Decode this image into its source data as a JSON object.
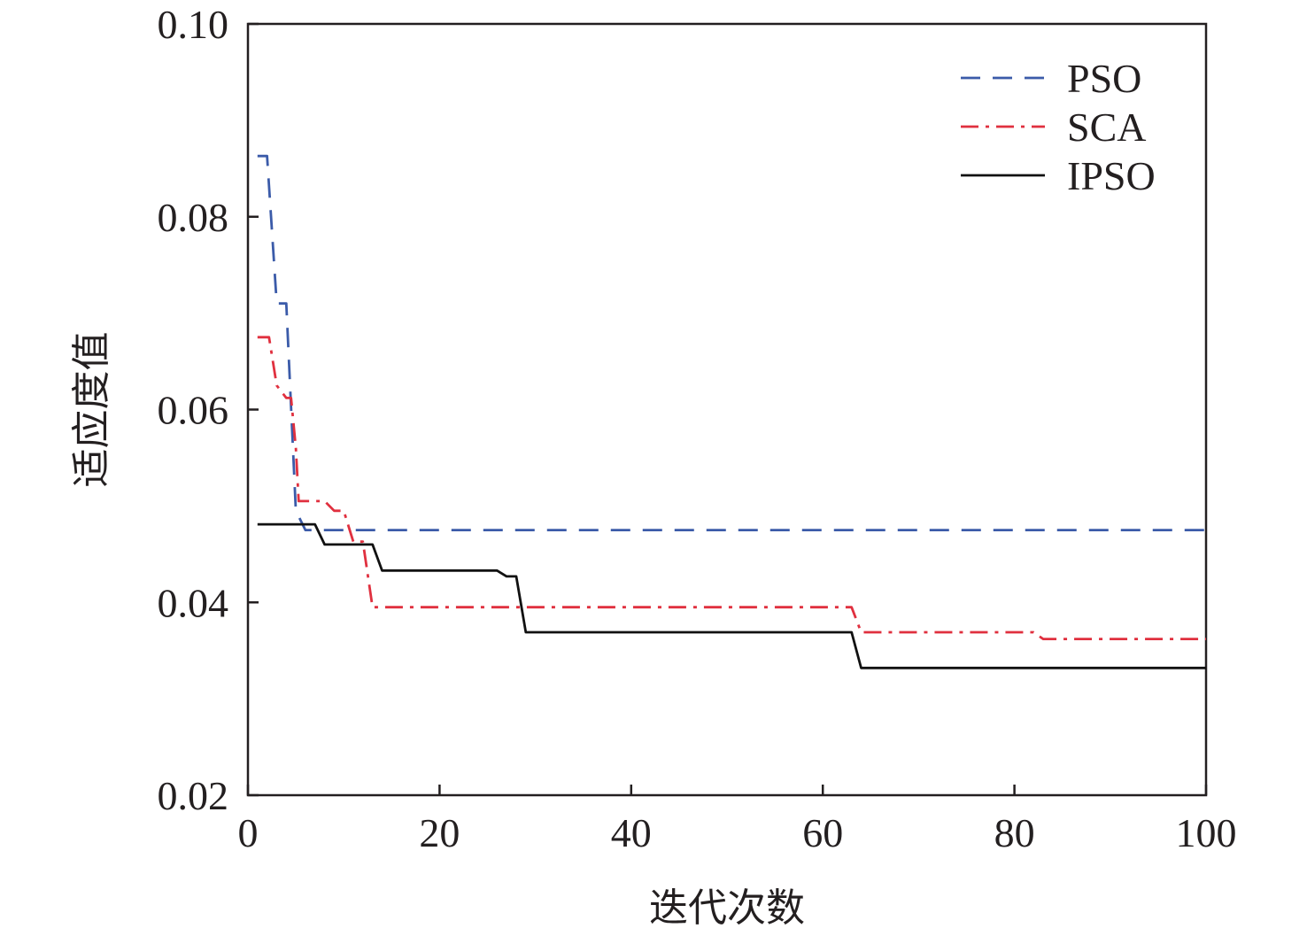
{
  "chart_data": {
    "type": "line",
    "title": "",
    "xlabel": "迭代次数",
    "ylabel": "适应度值",
    "xlim": [
      0,
      100
    ],
    "ylim": [
      0.02,
      0.1
    ],
    "x_ticks": [
      0,
      20,
      40,
      60,
      80,
      100
    ],
    "y_ticks": [
      0.02,
      0.04,
      0.06,
      0.08,
      0.1
    ],
    "x_tick_labels": [
      "0",
      "20",
      "40",
      "60",
      "80",
      "100"
    ],
    "y_tick_labels": [
      "0.02",
      "0.04",
      "0.06",
      "0.08",
      "0.10"
    ],
    "grid": false,
    "legend_position": "top-right",
    "series": [
      {
        "name": "PSO",
        "color": "#3b5ba9",
        "dash": "dashed",
        "points": [
          [
            1,
            0.0863
          ],
          [
            2,
            0.0863
          ],
          [
            3,
            0.071
          ],
          [
            4,
            0.071
          ],
          [
            5,
            0.0495
          ],
          [
            6,
            0.0475
          ],
          [
            100,
            0.0475
          ]
        ]
      },
      {
        "name": "SCA",
        "color": "#e0303f",
        "dash": "dashdot",
        "points": [
          [
            1,
            0.0675
          ],
          [
            2.2,
            0.0675
          ],
          [
            3,
            0.0625
          ],
          [
            4,
            0.0612
          ],
          [
            4.5,
            0.0612
          ],
          [
            5,
            0.056
          ],
          [
            5.3,
            0.0505
          ],
          [
            8,
            0.0505
          ],
          [
            9,
            0.0495
          ],
          [
            10,
            0.0495
          ],
          [
            11,
            0.0463
          ],
          [
            12,
            0.0463
          ],
          [
            13,
            0.0395
          ],
          [
            63,
            0.0395
          ],
          [
            64,
            0.0369
          ],
          [
            82,
            0.0369
          ],
          [
            83,
            0.0362
          ],
          [
            100,
            0.0362
          ]
        ]
      },
      {
        "name": "IPSO",
        "color": "#111111",
        "dash": "solid",
        "points": [
          [
            1,
            0.0481
          ],
          [
            6,
            0.0481
          ],
          [
            7,
            0.0481
          ],
          [
            8,
            0.046
          ],
          [
            13,
            0.046
          ],
          [
            14,
            0.0433
          ],
          [
            26,
            0.0433
          ],
          [
            27,
            0.0427
          ],
          [
            28,
            0.0427
          ],
          [
            29,
            0.0369
          ],
          [
            63,
            0.0369
          ],
          [
            64,
            0.0332
          ],
          [
            100,
            0.0332
          ]
        ]
      }
    ]
  }
}
